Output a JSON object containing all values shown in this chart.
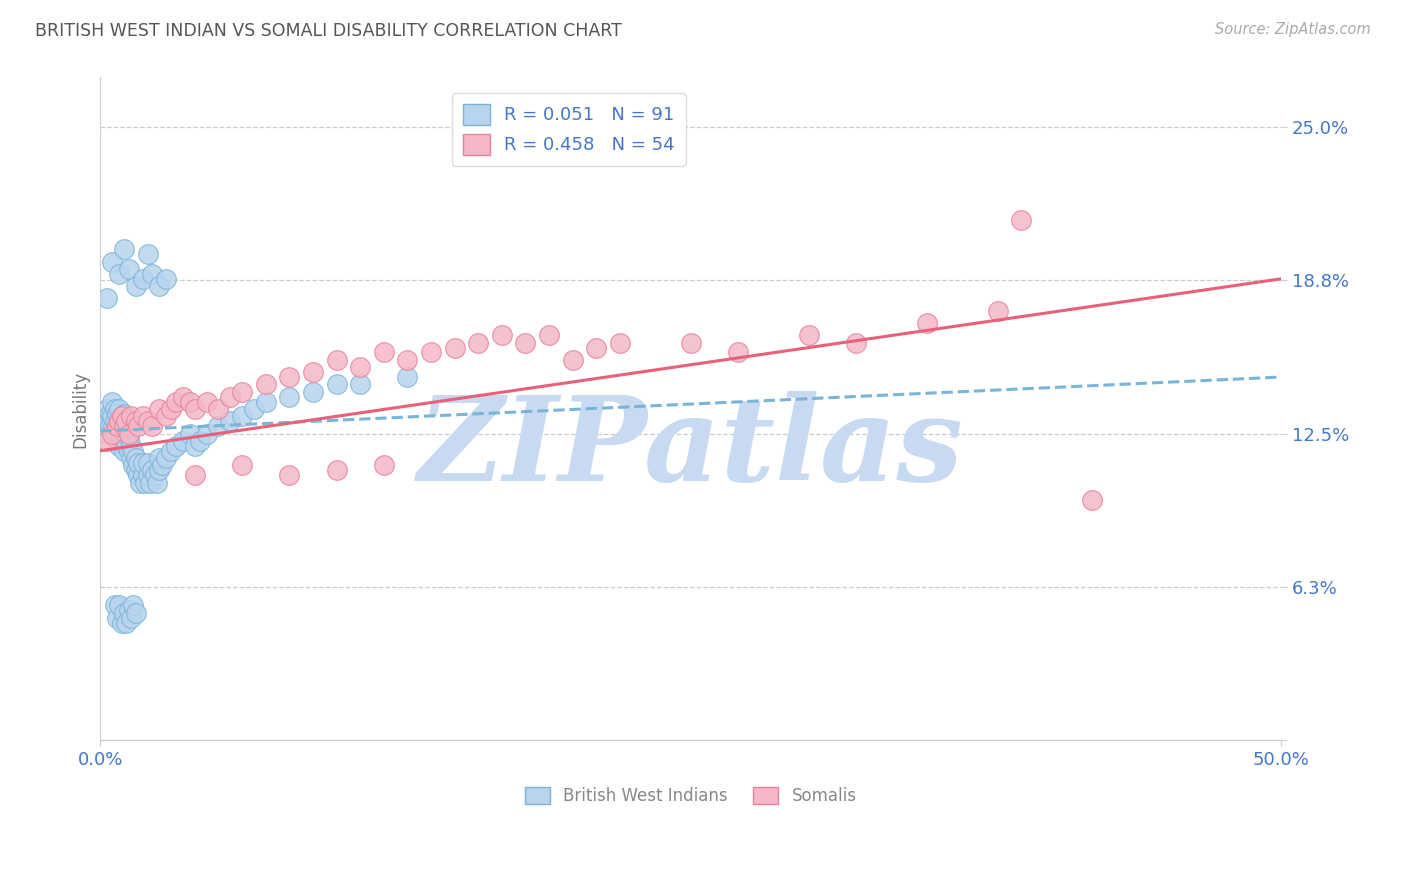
{
  "title": "BRITISH WEST INDIAN VS SOMALI DISABILITY CORRELATION CHART",
  "source_text": "Source: ZipAtlas.com",
  "ylabel": "Disability",
  "xlim": [
    0.0,
    0.5
  ],
  "ylim": [
    0.0,
    0.27
  ],
  "yticks": [
    0.0,
    0.0625,
    0.125,
    0.1875,
    0.25
  ],
  "ytick_labels": [
    "",
    "6.3%",
    "12.5%",
    "18.8%",
    "25.0%"
  ],
  "xticks": [
    0.0,
    0.5
  ],
  "xtick_labels": [
    "0.0%",
    "50.0%"
  ],
  "bwi_edge_color": "#7ab4d8",
  "bwi_face_color": "#b8d4ee",
  "somali_edge_color": "#e8809a",
  "somali_face_color": "#f4b8c8",
  "bwi_line_color": "#7ab4d8",
  "somali_line_color": "#e8607a",
  "watermark_color": "#c8daf2",
  "background_color": "#ffffff",
  "grid_color": "#cccccc",
  "axis_label_color": "#4477cc",
  "title_color": "#555555",
  "legend_r1": "R = 0.051",
  "legend_n1": "N = 91",
  "legend_r2": "R = 0.458",
  "legend_n2": "N = 54",
  "bwi_trendline_x": [
    0.0,
    0.5
  ],
  "bwi_trendline_y": [
    0.126,
    0.148
  ],
  "somali_trendline_x": [
    0.0,
    0.5
  ],
  "somali_trendline_y": [
    0.118,
    0.188
  ],
  "bwi_scatter_x": [
    0.002,
    0.003,
    0.003,
    0.004,
    0.004,
    0.005,
    0.005,
    0.005,
    0.006,
    0.006,
    0.006,
    0.007,
    0.007,
    0.007,
    0.008,
    0.008,
    0.008,
    0.008,
    0.009,
    0.009,
    0.009,
    0.01,
    0.01,
    0.01,
    0.01,
    0.011,
    0.011,
    0.011,
    0.012,
    0.012,
    0.012,
    0.013,
    0.013,
    0.014,
    0.014,
    0.015,
    0.015,
    0.016,
    0.016,
    0.017,
    0.018,
    0.018,
    0.019,
    0.02,
    0.02,
    0.021,
    0.022,
    0.023,
    0.024,
    0.025,
    0.025,
    0.026,
    0.028,
    0.03,
    0.032,
    0.035,
    0.038,
    0.04,
    0.042,
    0.045,
    0.05,
    0.055,
    0.06,
    0.065,
    0.07,
    0.08,
    0.09,
    0.1,
    0.11,
    0.13,
    0.005,
    0.008,
    0.01,
    0.012,
    0.015,
    0.018,
    0.02,
    0.022,
    0.025,
    0.028,
    0.006,
    0.007,
    0.008,
    0.009,
    0.01,
    0.011,
    0.012,
    0.013,
    0.014,
    0.015,
    0.003
  ],
  "bwi_scatter_y": [
    0.13,
    0.125,
    0.135,
    0.128,
    0.133,
    0.127,
    0.132,
    0.138,
    0.125,
    0.13,
    0.135,
    0.122,
    0.128,
    0.133,
    0.12,
    0.125,
    0.13,
    0.135,
    0.122,
    0.127,
    0.132,
    0.118,
    0.123,
    0.128,
    0.133,
    0.12,
    0.125,
    0.13,
    0.118,
    0.123,
    0.128,
    0.115,
    0.12,
    0.112,
    0.118,
    0.11,
    0.115,
    0.108,
    0.113,
    0.105,
    0.108,
    0.113,
    0.105,
    0.108,
    0.113,
    0.105,
    0.11,
    0.108,
    0.105,
    0.11,
    0.115,
    0.112,
    0.115,
    0.118,
    0.12,
    0.122,
    0.125,
    0.12,
    0.122,
    0.125,
    0.128,
    0.13,
    0.132,
    0.135,
    0.138,
    0.14,
    0.142,
    0.145,
    0.145,
    0.148,
    0.195,
    0.19,
    0.2,
    0.192,
    0.185,
    0.188,
    0.198,
    0.19,
    0.185,
    0.188,
    0.055,
    0.05,
    0.055,
    0.048,
    0.052,
    0.048,
    0.053,
    0.05,
    0.055,
    0.052,
    0.18
  ],
  "somali_scatter_x": [
    0.003,
    0.005,
    0.007,
    0.008,
    0.009,
    0.01,
    0.011,
    0.012,
    0.013,
    0.015,
    0.016,
    0.018,
    0.02,
    0.022,
    0.025,
    0.028,
    0.03,
    0.032,
    0.035,
    0.038,
    0.04,
    0.045,
    0.05,
    0.055,
    0.06,
    0.07,
    0.08,
    0.09,
    0.1,
    0.11,
    0.12,
    0.13,
    0.14,
    0.15,
    0.16,
    0.17,
    0.18,
    0.19,
    0.2,
    0.21,
    0.22,
    0.25,
    0.27,
    0.3,
    0.32,
    0.35,
    0.38,
    0.04,
    0.06,
    0.08,
    0.1,
    0.12,
    0.39,
    0.42
  ],
  "somali_scatter_y": [
    0.122,
    0.125,
    0.128,
    0.13,
    0.132,
    0.128,
    0.13,
    0.125,
    0.132,
    0.13,
    0.128,
    0.132,
    0.13,
    0.128,
    0.135,
    0.132,
    0.135,
    0.138,
    0.14,
    0.138,
    0.135,
    0.138,
    0.135,
    0.14,
    0.142,
    0.145,
    0.148,
    0.15,
    0.155,
    0.152,
    0.158,
    0.155,
    0.158,
    0.16,
    0.162,
    0.165,
    0.162,
    0.165,
    0.155,
    0.16,
    0.162,
    0.162,
    0.158,
    0.165,
    0.162,
    0.17,
    0.175,
    0.108,
    0.112,
    0.108,
    0.11,
    0.112,
    0.212,
    0.098
  ]
}
